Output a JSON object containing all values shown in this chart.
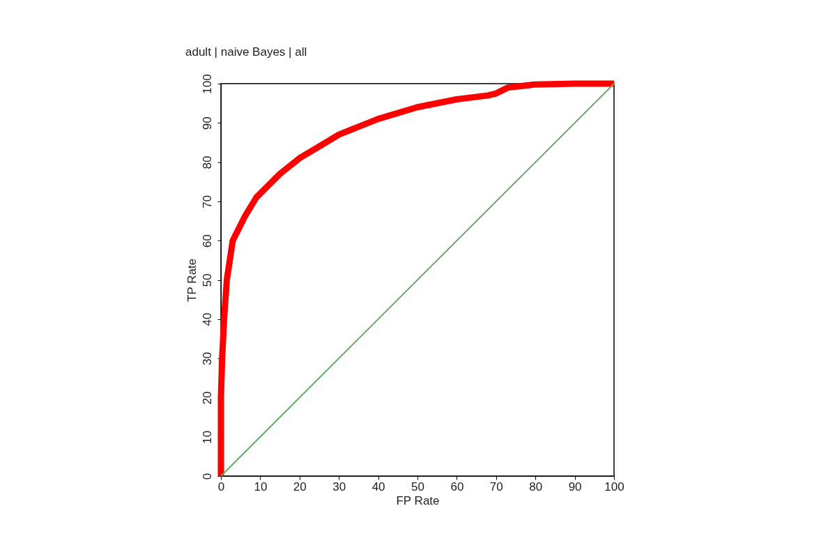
{
  "chart_data": {
    "type": "line",
    "title": "adult | naive Bayes | all",
    "xlabel": "FP Rate",
    "ylabel": "TP Rate",
    "xlim": [
      0,
      100
    ],
    "ylim": [
      0,
      100
    ],
    "xticks": [
      0,
      10,
      20,
      30,
      40,
      50,
      60,
      70,
      80,
      90,
      100
    ],
    "yticks": [
      0,
      10,
      20,
      30,
      40,
      50,
      60,
      70,
      80,
      90,
      100
    ],
    "grid": false,
    "line_style": "solid",
    "series": [
      {
        "color": "#ff0000",
        "x": [
          0,
          0,
          0.3,
          0.8,
          1.5,
          3,
          6,
          9,
          12,
          15,
          20,
          25,
          30,
          35,
          40,
          50,
          60,
          68,
          70,
          73,
          80,
          90,
          100
        ],
        "values": [
          0,
          20,
          30,
          40,
          50,
          60,
          66,
          71,
          74,
          77,
          81,
          84,
          87,
          89,
          91,
          94,
          96,
          97,
          97.5,
          99,
          99.8,
          100,
          100
        ]
      },
      {
        "color": "#6aa86a",
        "x": [
          0,
          100
        ],
        "values": [
          0,
          100
        ]
      }
    ]
  }
}
